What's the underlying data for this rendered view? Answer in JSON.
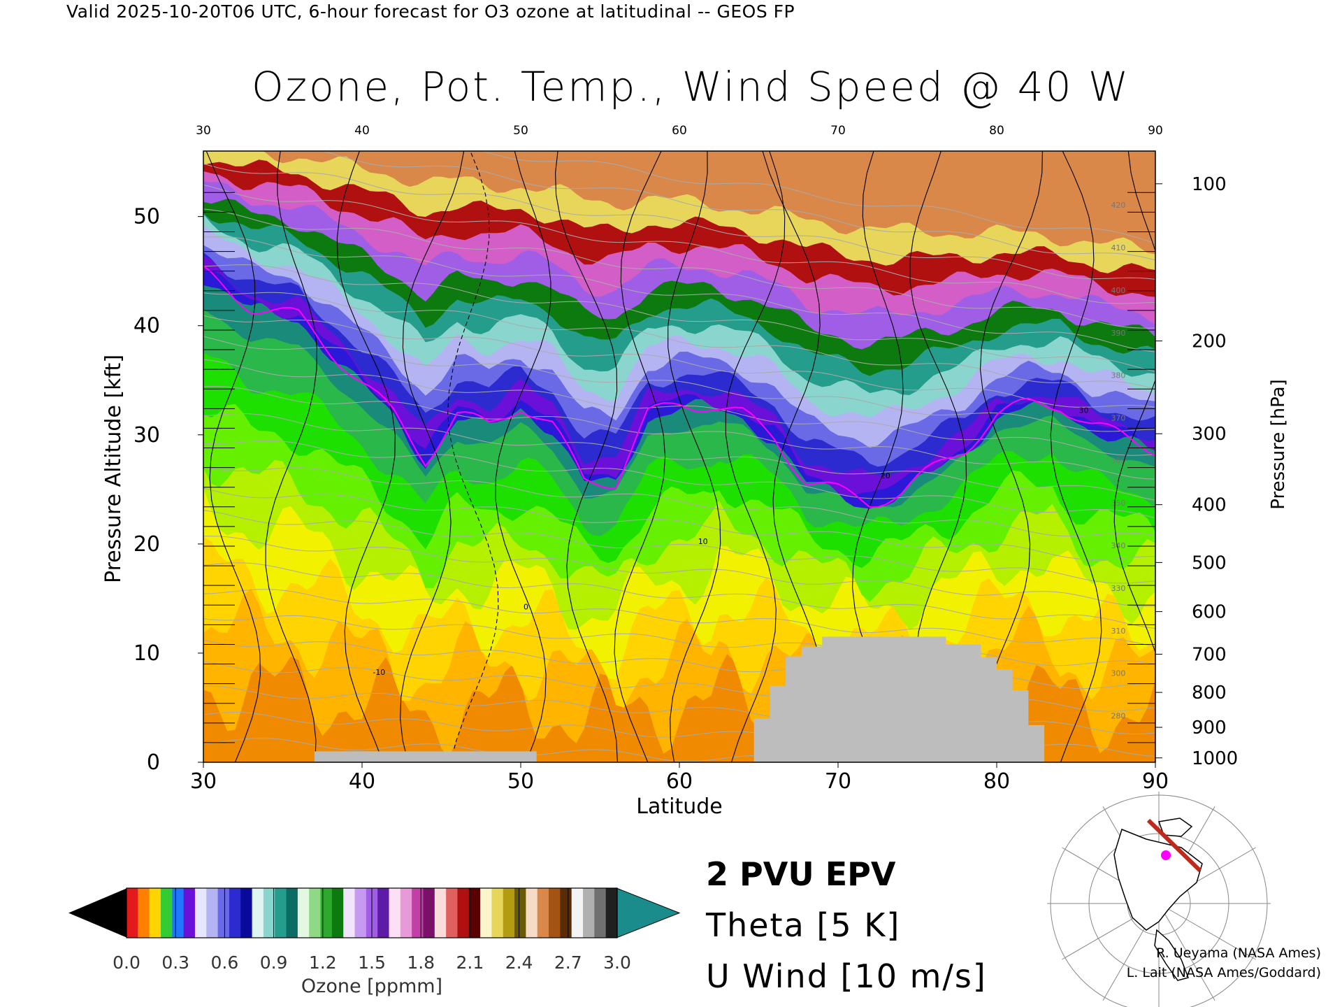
{
  "header": {
    "valid_line": "Valid 2025-10-20T06 UTC, 6-hour forecast for O3 ozone at latitudinal -- GEOS FP"
  },
  "chart_data": {
    "type": "heatmap",
    "title": "Ozone, Pot. Temp., Wind Speed @ 40 W",
    "xlabel": "Latitude",
    "ylabel": "Pressure Altitude [kft]",
    "ylabel_right": "Pressure [hPa]",
    "xlim": [
      30,
      90
    ],
    "ylim": [
      0,
      56
    ],
    "x_ticks": [
      "30",
      "40",
      "50",
      "60",
      "70",
      "80",
      "90"
    ],
    "y_ticks": [
      "0",
      "10",
      "20",
      "30",
      "40",
      "50"
    ],
    "pressure_ticks": [
      {
        "label": "100",
        "kft": 53.0
      },
      {
        "label": "200",
        "kft": 38.6
      },
      {
        "label": "300",
        "kft": 30.1
      },
      {
        "label": "400",
        "kft": 23.6
      },
      {
        "label": "500",
        "kft": 18.3
      },
      {
        "label": "600",
        "kft": 13.8
      },
      {
        "label": "700",
        "kft": 9.9
      },
      {
        "label": "800",
        "kft": 6.4
      },
      {
        "label": "900",
        "kft": 3.2
      },
      {
        "label": "1000",
        "kft": 0.4
      }
    ],
    "colorbar": {
      "label": "Ozone [ppmm]",
      "ticks": [
        "0.0",
        "0.3",
        "0.6",
        "0.9",
        "1.2",
        "1.5",
        "1.8",
        "2.1",
        "2.4",
        "2.7",
        "3.0"
      ],
      "range": [
        0,
        3.0
      ],
      "under_color": "#000000",
      "over_color": "#1a8c8c"
    },
    "ozone_bands": [
      {
        "ozone": 0.03,
        "color": "#f08a00"
      },
      {
        "ozone": 0.04,
        "color": "#ffb400"
      },
      {
        "ozone": 0.05,
        "color": "#ffd400"
      },
      {
        "ozone": 0.06,
        "color": "#f2f200"
      },
      {
        "ozone": 0.07,
        "color": "#b4f000"
      },
      {
        "ozone": 0.08,
        "color": "#64f000"
      },
      {
        "ozone": 0.09,
        "color": "#1ee000"
      },
      {
        "ozone": 0.11,
        "color": "#2ab84a"
      },
      {
        "ozone": 0.14,
        "color": "#1a8a7a"
      },
      {
        "ozone": 0.2,
        "color": "#2a1ad8"
      },
      {
        "ozone": 0.25,
        "color": "#6a10d8"
      },
      {
        "ozone": 0.35,
        "color": "#2b2bd0"
      },
      {
        "ozone": 0.45,
        "color": "#6a6ae6"
      },
      {
        "ozone": 0.55,
        "color": "#b4b4f2"
      },
      {
        "ozone": 0.7,
        "color": "#8ad6cf"
      },
      {
        "ozone": 0.85,
        "color": "#249d8c"
      },
      {
        "ozone": 1.0,
        "color": "#0d7a10"
      },
      {
        "ozone": 1.3,
        "color": "#a05ee6"
      },
      {
        "ozone": 1.7,
        "color": "#d45ec8"
      },
      {
        "ozone": 2.0,
        "color": "#b01010"
      },
      {
        "ozone": 2.3,
        "color": "#e8d65a"
      },
      {
        "ozone": 2.7,
        "color": "#d9884a"
      }
    ],
    "tropopause_kft": {
      "lat": [
        30,
        33,
        36,
        40,
        42,
        44,
        46,
        48,
        50,
        52,
        54,
        56,
        58,
        60,
        62,
        64,
        66,
        68,
        70,
        72,
        74,
        76,
        78,
        80,
        82,
        84,
        86,
        88,
        90
      ],
      "values": [
        46,
        43,
        42,
        36,
        33,
        29,
        33,
        32,
        34,
        32,
        27,
        27,
        33,
        34,
        34,
        33,
        31,
        27,
        26,
        25,
        26,
        28,
        30,
        33,
        34,
        34,
        32,
        31,
        30
      ]
    },
    "theta_labels": [
      "280",
      "300",
      "310",
      "330",
      "340",
      "350",
      "360",
      "370",
      "380",
      "390",
      "400",
      "410",
      "420"
    ],
    "wind_labels": [
      "-10",
      "0",
      "10",
      "20",
      "30"
    ],
    "legend": {
      "epv": "2 PVU EPV",
      "theta": "Theta [5 K]",
      "wind": "U Wind [10 m/s]",
      "epv_color": "#ff00ff",
      "theta_color": "#aaaaaa"
    },
    "terrain_color": "#bdbdbd",
    "map_track_color": "#c0281c",
    "map_point_color": "#ff00ff"
  },
  "credits": {
    "line1": "R. Ueyama (NASA Ames)",
    "line2": "L. Lait (NASA Ames/Goddard)"
  }
}
